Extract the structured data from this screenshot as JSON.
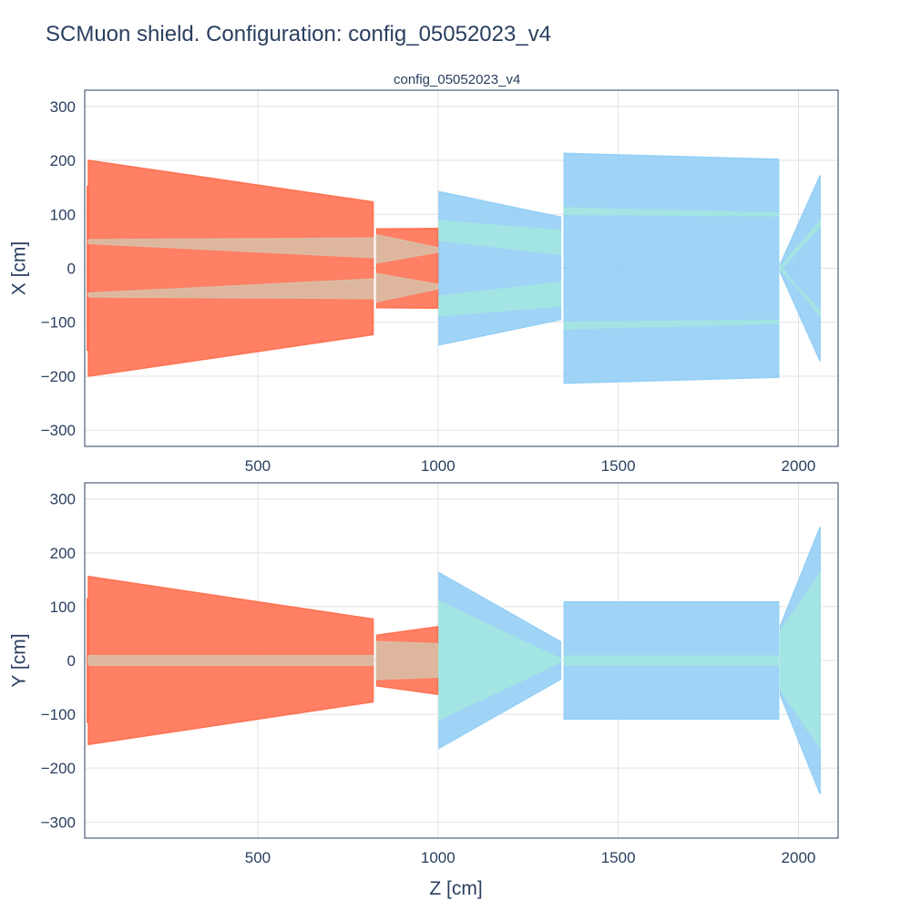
{
  "title": "SCMuon shield. Configuration: config_05052023_v4",
  "chart_data": [
    {
      "type": "area",
      "subplot_title": "config_05052023_v4",
      "xlabel": "",
      "ylabel": "X [cm]",
      "xlim": [
        20,
        2110
      ],
      "ylim": [
        -330,
        330
      ],
      "x_ticks": [
        500,
        1000,
        1500,
        2000
      ],
      "y_ticks": [
        300,
        200,
        100,
        0,
        -100,
        -200,
        -300
      ],
      "grid": true,
      "colors": {
        "outer_block_1": "#ff6a49",
        "inner_block_1": "#d8c0a8",
        "outer_block_2": "#8fcdf5",
        "inner_block_2": "#a3e6e0",
        "grid": "#e2e2e2"
      },
      "series": [
        {
          "color": "outer_block_1",
          "points": [
            [
              27,
              152
            ],
            [
              27,
              -152
            ],
            [
              29,
              -152
            ],
            [
              29,
              152
            ]
          ]
        },
        {
          "color": "outer_block_1",
          "points": [
            [
              30,
              200
            ],
            [
              820,
              123
            ],
            [
              820,
              -123
            ],
            [
              30,
              -200
            ]
          ]
        },
        {
          "color": "inner_block_1",
          "points": [
            [
              30,
              53
            ],
            [
              820,
              56
            ],
            [
              820,
              20
            ],
            [
              30,
              46
            ]
          ]
        },
        {
          "color": "inner_block_1",
          "points": [
            [
              30,
              -46
            ],
            [
              820,
              -20
            ],
            [
              820,
              -56
            ],
            [
              30,
              -53
            ]
          ]
        },
        {
          "color": "outer_block_1",
          "points": [
            [
              830,
              73
            ],
            [
              1000,
              74
            ],
            [
              1000,
              -74
            ],
            [
              830,
              -73
            ]
          ]
        },
        {
          "color": "inner_block_1",
          "points": [
            [
              830,
              62
            ],
            [
              1000,
              38
            ],
            [
              1000,
              30
            ],
            [
              830,
              10
            ]
          ]
        },
        {
          "color": "inner_block_1",
          "points": [
            [
              830,
              -10
            ],
            [
              1000,
              -30
            ],
            [
              1000,
              -38
            ],
            [
              830,
              -62
            ]
          ]
        },
        {
          "color": "outer_block_2",
          "points": [
            [
              1003,
              142
            ],
            [
              1340,
              95
            ],
            [
              1340,
              -95
            ],
            [
              1003,
              -142
            ]
          ]
        },
        {
          "color": "inner_block_2",
          "points": [
            [
              1003,
              88
            ],
            [
              1340,
              70
            ],
            [
              1340,
              26
            ],
            [
              1003,
              52
            ]
          ]
        },
        {
          "color": "inner_block_2",
          "points": [
            [
              1003,
              -52
            ],
            [
              1340,
              -26
            ],
            [
              1340,
              -70
            ],
            [
              1003,
              -88
            ]
          ]
        },
        {
          "color": "outer_block_2",
          "points": [
            [
              1350,
              213
            ],
            [
              1945,
              202
            ],
            [
              1945,
              -202
            ],
            [
              1350,
              -213
            ]
          ]
        },
        {
          "color": "inner_block_2",
          "points": [
            [
              1350,
              112
            ],
            [
              1945,
              102
            ],
            [
              1945,
              97
            ],
            [
              1350,
              100
            ]
          ]
        },
        {
          "color": "inner_block_2",
          "points": [
            [
              1350,
              -100
            ],
            [
              1945,
              -97
            ],
            [
              1945,
              -102
            ],
            [
              1350,
              -112
            ]
          ]
        },
        {
          "color": "outer_block_2",
          "points": [
            [
              1950,
              8
            ],
            [
              2060,
              172
            ],
            [
              2060,
              -172
            ],
            [
              1950,
              -8
            ]
          ]
        },
        {
          "color": "inner_block_2",
          "points": [
            [
              1950,
              3
            ],
            [
              2060,
              88
            ],
            [
              2060,
              78
            ],
            [
              1950,
              -3
            ]
          ]
        },
        {
          "color": "inner_block_2",
          "points": [
            [
              1950,
              -3
            ],
            [
              2060,
              -78
            ],
            [
              2060,
              -88
            ],
            [
              1950,
              3
            ]
          ]
        }
      ]
    },
    {
      "type": "area",
      "xlabel": "Z [cm]",
      "ylabel": "Y [cm]",
      "xlim": [
        20,
        2110
      ],
      "ylim": [
        -330,
        330
      ],
      "x_ticks": [
        500,
        1000,
        1500,
        2000
      ],
      "y_ticks": [
        300,
        200,
        100,
        0,
        -100,
        -200,
        -300
      ],
      "grid": true,
      "colors": {
        "outer_block_1": "#ff6a49",
        "inner_block_1": "#d8c0a8",
        "outer_block_2": "#8fcdf5",
        "inner_block_2": "#a3e6e0",
        "grid": "#e2e2e2"
      },
      "series": [
        {
          "color": "outer_block_1",
          "points": [
            [
              27,
              115
            ],
            [
              27,
              -115
            ],
            [
              29,
              -115
            ],
            [
              29,
              115
            ]
          ]
        },
        {
          "color": "outer_block_1",
          "points": [
            [
              30,
              156
            ],
            [
              820,
              77
            ],
            [
              820,
              -77
            ],
            [
              30,
              -156
            ]
          ]
        },
        {
          "color": "inner_block_1",
          "points": [
            [
              30,
              9
            ],
            [
              820,
              9
            ],
            [
              820,
              -9
            ],
            [
              30,
              -9
            ]
          ]
        },
        {
          "color": "outer_block_1",
          "points": [
            [
              830,
              47
            ],
            [
              1000,
              63
            ],
            [
              1000,
              -63
            ],
            [
              830,
              -47
            ]
          ]
        },
        {
          "color": "inner_block_1",
          "points": [
            [
              830,
              35
            ],
            [
              1000,
              31
            ],
            [
              1000,
              -31
            ],
            [
              830,
              -35
            ]
          ]
        },
        {
          "color": "outer_block_2",
          "points": [
            [
              1003,
              163
            ],
            [
              1340,
              35
            ],
            [
              1340,
              -35
            ],
            [
              1003,
              -163
            ]
          ]
        },
        {
          "color": "inner_block_2",
          "points": [
            [
              1003,
              110
            ],
            [
              1340,
              3
            ],
            [
              1340,
              -3
            ],
            [
              1003,
              -110
            ]
          ]
        },
        {
          "color": "outer_block_2",
          "points": [
            [
              1350,
              109
            ],
            [
              1945,
              109
            ],
            [
              1945,
              -109
            ],
            [
              1350,
              -109
            ]
          ]
        },
        {
          "color": "inner_block_2",
          "points": [
            [
              1350,
              8
            ],
            [
              1945,
              8
            ],
            [
              1945,
              -8
            ],
            [
              1350,
              -8
            ]
          ]
        },
        {
          "color": "outer_block_2",
          "points": [
            [
              1950,
              65
            ],
            [
              2060,
              248
            ],
            [
              2060,
              -248
            ],
            [
              1950,
              -65
            ]
          ]
        },
        {
          "color": "inner_block_2",
          "points": [
            [
              1950,
              55
            ],
            [
              2060,
              162
            ],
            [
              2060,
              -162
            ],
            [
              1950,
              -55
            ]
          ]
        }
      ]
    }
  ]
}
